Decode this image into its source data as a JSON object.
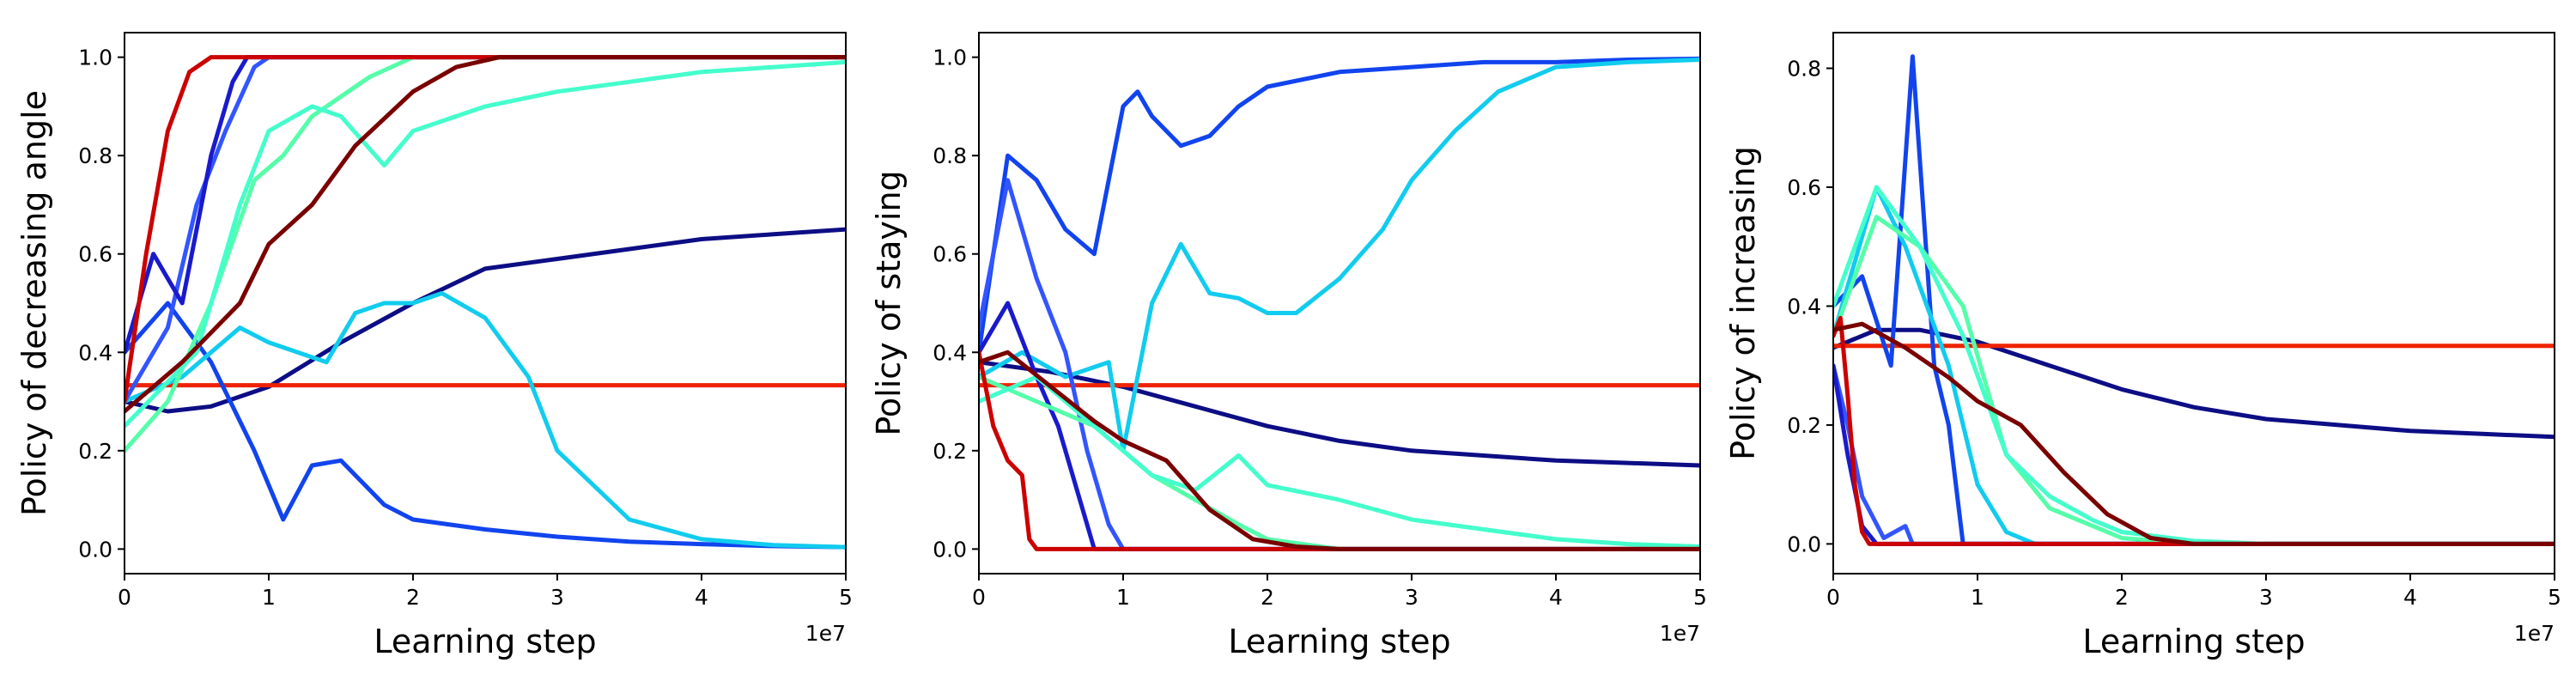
{
  "chart_data": [
    {
      "type": "line",
      "title": "",
      "xlabel": "Learning step",
      "ylabel": "Policy of decreasing angle",
      "x_offset_label": "1e7",
      "xlim": [
        0,
        5
      ],
      "ylim": [
        -0.05,
        1.05
      ],
      "xticks": [
        0,
        1,
        2,
        3,
        4,
        5
      ],
      "yticks": [
        0.0,
        0.2,
        0.4,
        0.6,
        0.8,
        1.0
      ],
      "xtick_labels": [
        "0",
        "1",
        "2",
        "3",
        "4",
        "5"
      ],
      "ytick_labels": [
        "0.0",
        "0.2",
        "0.4",
        "0.6",
        "0.8",
        "1.0"
      ],
      "grid": false,
      "legend": "none",
      "series": [
        {
          "color": "#0d0d85",
          "x": [
            0,
            0.3,
            0.6,
            1.0,
            1.5,
            2.0,
            2.5,
            3.0,
            3.5,
            4.0,
            4.5,
            5.0
          ],
          "y": [
            0.3,
            0.28,
            0.29,
            0.33,
            0.42,
            0.5,
            0.57,
            0.59,
            0.61,
            0.63,
            0.64,
            0.65
          ]
        },
        {
          "color": "#ee2200",
          "x": [
            0,
            5.0
          ],
          "y": [
            0.333,
            0.333
          ]
        },
        {
          "color": "#1144ee",
          "x": [
            0,
            0.3,
            0.6,
            0.9,
            1.1,
            1.3,
            1.5,
            1.8,
            2.0,
            2.5,
            3.0,
            3.5,
            4.0,
            4.5,
            5.0
          ],
          "y": [
            0.4,
            0.5,
            0.38,
            0.2,
            0.06,
            0.17,
            0.18,
            0.09,
            0.06,
            0.04,
            0.025,
            0.015,
            0.01,
            0.006,
            0.004
          ]
        },
        {
          "color": "#11ccee",
          "x": [
            0,
            0.4,
            0.8,
            1.0,
            1.2,
            1.4,
            1.6,
            1.8,
            2.0,
            2.2,
            2.5,
            2.8,
            3.0,
            3.5,
            4.0,
            4.5,
            5.0
          ],
          "y": [
            0.3,
            0.35,
            0.45,
            0.42,
            0.4,
            0.38,
            0.48,
            0.5,
            0.5,
            0.52,
            0.47,
            0.35,
            0.2,
            0.06,
            0.02,
            0.008,
            0.004
          ]
        },
        {
          "color": "#3355ff",
          "x": [
            0,
            0.3,
            0.5,
            0.7,
            0.9,
            1.0,
            5.0
          ],
          "y": [
            0.3,
            0.45,
            0.7,
            0.85,
            0.98,
            1.0,
            1.0
          ]
        },
        {
          "color": "#1a1acc",
          "x": [
            0,
            0.2,
            0.4,
            0.6,
            0.75,
            0.85,
            5.0
          ],
          "y": [
            0.4,
            0.6,
            0.5,
            0.8,
            0.95,
            1.0,
            1.0
          ]
        },
        {
          "color": "#55ffaa",
          "x": [
            0,
            0.3,
            0.6,
            0.9,
            1.1,
            1.3,
            1.5,
            1.7,
            2.0,
            5.0
          ],
          "y": [
            0.2,
            0.3,
            0.5,
            0.75,
            0.8,
            0.88,
            0.92,
            0.96,
            1.0,
            1.0
          ]
        },
        {
          "color": "#44ffcc",
          "x": [
            0,
            0.5,
            0.8,
            1.0,
            1.3,
            1.5,
            1.8,
            2.0,
            2.5,
            3.0,
            3.5,
            4.0,
            4.5,
            5.0
          ],
          "y": [
            0.25,
            0.4,
            0.7,
            0.85,
            0.9,
            0.88,
            0.78,
            0.85,
            0.9,
            0.93,
            0.95,
            0.97,
            0.98,
            0.99
          ]
        },
        {
          "color": "#cc0000",
          "x": [
            0,
            0.15,
            0.3,
            0.45,
            0.6,
            5.0
          ],
          "y": [
            0.3,
            0.6,
            0.85,
            0.97,
            1.0,
            1.0
          ]
        },
        {
          "color": "#7a0000",
          "x": [
            0,
            0.4,
            0.8,
            1.0,
            1.3,
            1.6,
            2.0,
            2.3,
            2.6,
            3.0,
            5.0
          ],
          "y": [
            0.28,
            0.38,
            0.5,
            0.62,
            0.7,
            0.82,
            0.93,
            0.98,
            1.0,
            1.0,
            1.0
          ]
        }
      ]
    },
    {
      "type": "line",
      "title": "",
      "xlabel": "Learning step",
      "ylabel": "Policy of staying",
      "x_offset_label": "1e7",
      "xlim": [
        0,
        5
      ],
      "ylim": [
        -0.05,
        1.05
      ],
      "xticks": [
        0,
        1,
        2,
        3,
        4,
        5
      ],
      "yticks": [
        0.0,
        0.2,
        0.4,
        0.6,
        0.8,
        1.0
      ],
      "xtick_labels": [
        "0",
        "1",
        "2",
        "3",
        "4",
        "5"
      ],
      "ytick_labels": [
        "0.0",
        "0.2",
        "0.4",
        "0.6",
        "0.8",
        "1.0"
      ],
      "grid": false,
      "legend": "none",
      "series": [
        {
          "color": "#0d0d85",
          "x": [
            0,
            0.5,
            1.0,
            1.5,
            2.0,
            2.5,
            3.0,
            3.5,
            4.0,
            4.5,
            5.0
          ],
          "y": [
            0.38,
            0.36,
            0.33,
            0.29,
            0.25,
            0.22,
            0.2,
            0.19,
            0.18,
            0.175,
            0.17
          ]
        },
        {
          "color": "#ee2200",
          "x": [
            0,
            5.0
          ],
          "y": [
            0.333,
            0.333
          ]
        },
        {
          "color": "#1144ee",
          "x": [
            0,
            0.2,
            0.4,
            0.6,
            0.8,
            1.0,
            1.1,
            1.2,
            1.4,
            1.6,
            1.8,
            2.0,
            2.5,
            3.0,
            3.5,
            4.0,
            4.5,
            5.0
          ],
          "y": [
            0.4,
            0.8,
            0.75,
            0.65,
            0.6,
            0.9,
            0.93,
            0.88,
            0.82,
            0.84,
            0.9,
            0.94,
            0.97,
            0.98,
            0.99,
            0.99,
            0.995,
            0.997
          ]
        },
        {
          "color": "#11ccee",
          "x": [
            0,
            0.3,
            0.6,
            0.9,
            1.0,
            1.2,
            1.4,
            1.6,
            1.8,
            2.0,
            2.2,
            2.5,
            2.8,
            3.0,
            3.3,
            3.6,
            4.0,
            4.5,
            5.0
          ],
          "y": [
            0.35,
            0.4,
            0.35,
            0.38,
            0.2,
            0.5,
            0.62,
            0.52,
            0.51,
            0.48,
            0.48,
            0.55,
            0.65,
            0.75,
            0.85,
            0.93,
            0.98,
            0.99,
            0.995
          ]
        },
        {
          "color": "#3355ff",
          "x": [
            0,
            0.2,
            0.4,
            0.6,
            0.75,
            0.9,
            1.0,
            5.0
          ],
          "y": [
            0.45,
            0.75,
            0.55,
            0.4,
            0.2,
            0.05,
            0,
            0
          ]
        },
        {
          "color": "#1a1acc",
          "x": [
            0,
            0.2,
            0.4,
            0.55,
            0.7,
            0.8,
            5.0
          ],
          "y": [
            0.4,
            0.5,
            0.35,
            0.25,
            0.1,
            0,
            0
          ]
        },
        {
          "color": "#55ffaa",
          "x": [
            0,
            0.4,
            0.8,
            1.0,
            1.2,
            1.5,
            1.8,
            2.0,
            2.5,
            5.0
          ],
          "y": [
            0.35,
            0.3,
            0.25,
            0.2,
            0.15,
            0.1,
            0.05,
            0.02,
            0,
            0
          ]
        },
        {
          "color": "#44ffcc",
          "x": [
            0,
            0.4,
            0.8,
            1.2,
            1.5,
            1.8,
            2.0,
            2.5,
            3.0,
            3.5,
            4.0,
            4.5,
            5.0
          ],
          "y": [
            0.3,
            0.35,
            0.25,
            0.15,
            0.12,
            0.19,
            0.13,
            0.1,
            0.06,
            0.04,
            0.02,
            0.01,
            0.005
          ]
        },
        {
          "color": "#cc0000",
          "x": [
            0,
            0.1,
            0.2,
            0.3,
            0.35,
            0.4,
            5.0
          ],
          "y": [
            0.4,
            0.25,
            0.18,
            0.15,
            0.02,
            0,
            0
          ]
        },
        {
          "color": "#7a0000",
          "x": [
            0,
            0.2,
            0.5,
            0.8,
            1.0,
            1.3,
            1.6,
            1.9,
            2.2,
            2.5,
            5.0
          ],
          "y": [
            0.38,
            0.4,
            0.33,
            0.26,
            0.22,
            0.18,
            0.08,
            0.02,
            0.005,
            0,
            0
          ]
        }
      ]
    },
    {
      "type": "line",
      "title": "",
      "xlabel": "Learning step",
      "ylabel": "Policy of increasing",
      "x_offset_label": "1e7",
      "xlim": [
        0,
        5
      ],
      "ylim": [
        -0.05,
        0.86
      ],
      "xticks": [
        0,
        1,
        2,
        3,
        4,
        5
      ],
      "yticks": [
        0.0,
        0.2,
        0.4,
        0.6,
        0.8
      ],
      "xtick_labels": [
        "0",
        "1",
        "2",
        "3",
        "4",
        "5"
      ],
      "ytick_labels": [
        "0.0",
        "0.2",
        "0.4",
        "0.6",
        "0.8"
      ],
      "grid": false,
      "legend": "none",
      "series": [
        {
          "color": "#0d0d85",
          "x": [
            0,
            0.3,
            0.6,
            1.0,
            1.5,
            2.0,
            2.5,
            3.0,
            3.5,
            4.0,
            4.5,
            5.0
          ],
          "y": [
            0.33,
            0.36,
            0.36,
            0.34,
            0.3,
            0.26,
            0.23,
            0.21,
            0.2,
            0.19,
            0.185,
            0.18
          ]
        },
        {
          "color": "#ee2200",
          "x": [
            0,
            5.0
          ],
          "y": [
            0.333,
            0.333
          ]
        },
        {
          "color": "#1144ee",
          "x": [
            0,
            0.2,
            0.4,
            0.55,
            0.7,
            0.8,
            0.9,
            5.0
          ],
          "y": [
            0.4,
            0.45,
            0.3,
            0.82,
            0.3,
            0.2,
            0,
            0
          ]
        },
        {
          "color": "#11ccee",
          "x": [
            0,
            0.3,
            0.5,
            0.8,
            1.0,
            1.2,
            1.4,
            5.0
          ],
          "y": [
            0.35,
            0.6,
            0.5,
            0.3,
            0.1,
            0.02,
            0,
            0
          ]
        },
        {
          "color": "#3355ff",
          "x": [
            0,
            0.1,
            0.2,
            0.35,
            0.5,
            0.55,
            0.6,
            5.0
          ],
          "y": [
            0.3,
            0.2,
            0.08,
            0.01,
            0.03,
            0,
            0,
            0
          ]
        },
        {
          "color": "#1a1acc",
          "x": [
            0,
            0.1,
            0.2,
            0.3,
            5.0
          ],
          "y": [
            0.3,
            0.15,
            0.03,
            0,
            0
          ]
        },
        {
          "color": "#55ffaa",
          "x": [
            0,
            0.3,
            0.6,
            0.9,
            1.2,
            1.5,
            1.8,
            2.0,
            2.5,
            5.0
          ],
          "y": [
            0.35,
            0.55,
            0.5,
            0.4,
            0.15,
            0.06,
            0.03,
            0.01,
            0,
            0
          ]
        },
        {
          "color": "#44ffcc",
          "x": [
            0,
            0.3,
            0.6,
            0.9,
            1.2,
            1.5,
            1.8,
            2.0,
            2.5,
            3.0,
            5.0
          ],
          "y": [
            0.4,
            0.6,
            0.5,
            0.35,
            0.15,
            0.08,
            0.04,
            0.02,
            0.005,
            0,
            0
          ]
        },
        {
          "color": "#cc0000",
          "x": [
            0,
            0.05,
            0.1,
            0.15,
            0.2,
            0.25,
            0.3,
            5.0
          ],
          "y": [
            0.35,
            0.38,
            0.25,
            0.1,
            0.02,
            0,
            0,
            0
          ]
        },
        {
          "color": "#7a0000",
          "x": [
            0,
            0.2,
            0.5,
            0.8,
            1.0,
            1.3,
            1.6,
            1.9,
            2.2,
            2.5,
            5.0
          ],
          "y": [
            0.36,
            0.37,
            0.33,
            0.28,
            0.24,
            0.2,
            0.12,
            0.05,
            0.01,
            0,
            0
          ]
        }
      ]
    }
  ]
}
